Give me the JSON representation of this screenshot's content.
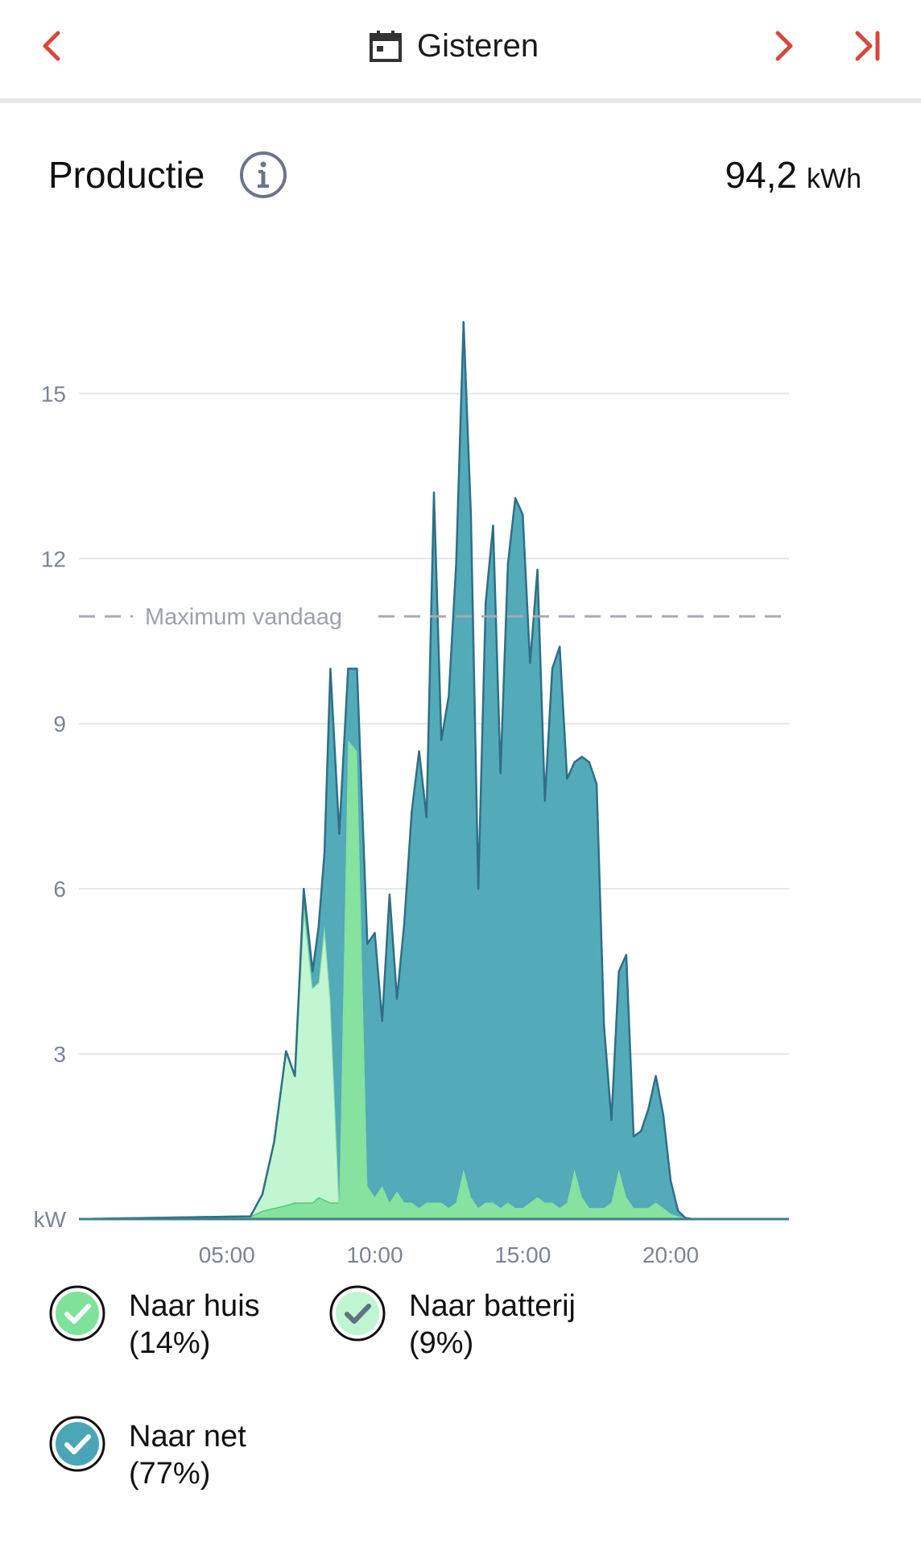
{
  "header": {
    "date_label": "Gisteren",
    "icons": {
      "prev": "chevron-left-icon",
      "calendar": "calendar-icon",
      "next": "chevron-right-icon",
      "last": "skip-to-end-icon"
    },
    "accent_color": "#d9473b"
  },
  "summary": {
    "title": "Productie",
    "info_icon": "info-icon",
    "total_value": "94,2",
    "total_unit": "kWh"
  },
  "chart_data": {
    "type": "area",
    "ylabel": "kW",
    "ylim": [
      0,
      16
    ],
    "yticks": [
      "3",
      "6",
      "9",
      "12",
      "15"
    ],
    "ytick_values": [
      3,
      6,
      9,
      12,
      15
    ],
    "xlim": [
      0,
      24
    ],
    "xticks": [
      "05:00",
      "10:00",
      "15:00",
      "20:00"
    ],
    "xtick_values": [
      5,
      10,
      15,
      20
    ],
    "grid": true,
    "reference_line": {
      "label": "Maximum vandaag",
      "value": 10.95
    },
    "x": [
      0,
      5.8,
      6.2,
      6.6,
      7.0,
      7.3,
      7.6,
      7.9,
      8.1,
      8.3,
      8.5,
      8.8,
      9.1,
      9.4,
      9.75,
      10.0,
      10.25,
      10.5,
      10.75,
      11.0,
      11.25,
      11.5,
      11.75,
      12.0,
      12.25,
      12.5,
      12.75,
      13.0,
      13.25,
      13.5,
      13.75,
      14.0,
      14.25,
      14.5,
      14.75,
      15.0,
      15.25,
      15.5,
      15.75,
      16.0,
      16.25,
      16.5,
      16.75,
      17.0,
      17.25,
      17.5,
      17.75,
      18.0,
      18.25,
      18.5,
      18.75,
      19.0,
      19.25,
      19.5,
      19.75,
      20.0,
      20.25,
      20.5,
      20.75,
      21.0,
      21.25,
      21.5,
      24
    ],
    "series": [
      {
        "name": "Naar huis (14%)",
        "color": "#7fe29a",
        "stroke": "#4cc46c",
        "values": [
          0,
          0.05,
          0.15,
          0.2,
          0.25,
          0.3,
          0.3,
          0.3,
          0.4,
          0.35,
          0.3,
          0.3,
          8.7,
          8.5,
          0.6,
          0.4,
          0.6,
          0.3,
          0.5,
          0.3,
          0.3,
          0.2,
          0.3,
          0.3,
          0.3,
          0.2,
          0.3,
          0.9,
          0.4,
          0.2,
          0.3,
          0.3,
          0.2,
          0.3,
          0.2,
          0.2,
          0.3,
          0.4,
          0.3,
          0.3,
          0.2,
          0.3,
          0.9,
          0.4,
          0.2,
          0.2,
          0.2,
          0.3,
          0.9,
          0.4,
          0.2,
          0.2,
          0.2,
          0.3,
          0.2,
          0.1,
          0.05,
          0.02,
          0,
          0,
          0,
          0,
          0
        ]
      },
      {
        "name": "Naar batterij (9%)",
        "color": "#bff5d0",
        "stroke": "#8ee0a6",
        "values": [
          0,
          0,
          0.3,
          1.2,
          2.8,
          2.3,
          5.4,
          3.9,
          3.9,
          5.0,
          3.7,
          0,
          0,
          0,
          0,
          0,
          0,
          0,
          0,
          0,
          0,
          0,
          0,
          0,
          0,
          0,
          0,
          0,
          0,
          0,
          0,
          0,
          0,
          0,
          0,
          0,
          0,
          0,
          0,
          0,
          0,
          0,
          0,
          0,
          0,
          0,
          0,
          0,
          0,
          0,
          0,
          0,
          0,
          0,
          0,
          0,
          0,
          0,
          0,
          0,
          0,
          0,
          0
        ]
      },
      {
        "name": "Naar net (77%)",
        "color": "#4aa6b6",
        "stroke": "#2f6f85",
        "values": [
          0,
          0,
          0,
          0,
          0,
          0,
          0.3,
          0.3,
          1.0,
          1.3,
          6.0,
          6.7,
          1.3,
          1.5,
          4.4,
          4.8,
          3.0,
          5.6,
          3.5,
          5.1,
          7.1,
          8.3,
          7.0,
          12.9,
          8.4,
          9.3,
          11.6,
          15.4,
          12.4,
          5.8,
          10.9,
          12.3,
          7.9,
          11.6,
          12.9,
          12.6,
          9.8,
          11.4,
          7.3,
          9.7,
          10.2,
          7.7,
          7.4,
          8.0,
          8.1,
          7.7,
          3.3,
          1.5,
          3.6,
          4.4,
          1.3,
          1.4,
          1.8,
          2.3,
          1.7,
          0.6,
          0.1,
          0,
          0,
          0,
          0,
          0,
          0
        ]
      }
    ],
    "legend": [
      {
        "label": "Naar huis",
        "pct": "(14%)",
        "fill": "#7fe29a",
        "check": "#ffffff"
      },
      {
        "label": "Naar batterij",
        "pct": "(9%)",
        "fill": "#bff5d0",
        "check": "#5e7283"
      },
      {
        "label": "Naar net",
        "pct": "(77%)",
        "fill": "#4aa6b6",
        "check": "#ffffff"
      }
    ]
  }
}
